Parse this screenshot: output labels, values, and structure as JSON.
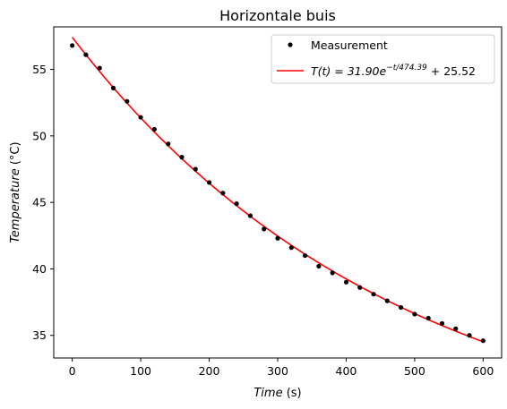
{
  "chart_data": {
    "type": "scatter",
    "title": "Horizontale buis",
    "xlabel": {
      "var": "Time",
      "unit": " (s)"
    },
    "ylabel": {
      "var": "Temperature",
      "unit": " (°C)"
    },
    "xlim": [
      -27,
      627
    ],
    "ylim": [
      33.3,
      58.2
    ],
    "xticks": [
      0,
      100,
      200,
      300,
      400,
      500,
      600
    ],
    "yticks": [
      35,
      40,
      45,
      50,
      55
    ],
    "grid": false,
    "legend_position": "top-right",
    "series": [
      {
        "name": "Measurement",
        "kind": "points",
        "color": "#000000",
        "x": [
          0,
          20,
          40,
          60,
          80,
          100,
          120,
          140,
          160,
          180,
          200,
          220,
          240,
          260,
          280,
          300,
          320,
          340,
          360,
          380,
          400,
          420,
          440,
          460,
          480,
          500,
          520,
          540,
          560,
          580,
          600
        ],
        "y": [
          56.8,
          56.1,
          55.1,
          53.6,
          52.6,
          51.4,
          50.5,
          49.4,
          48.4,
          47.5,
          46.5,
          45.7,
          44.9,
          44.0,
          43.0,
          42.3,
          41.6,
          41.0,
          40.2,
          39.7,
          39.0,
          38.6,
          38.1,
          37.6,
          37.1,
          36.6,
          36.3,
          35.9,
          35.5,
          35.0,
          34.6
        ]
      },
      {
        "name": "fit",
        "kind": "fit_curve",
        "color": "#ff0000",
        "A": 31.9,
        "tau": 474.39,
        "C": 25.52,
        "x_range": [
          0,
          600
        ]
      }
    ],
    "legend": [
      {
        "label": "Measurement",
        "marker": "dot",
        "color": "#000000"
      },
      {
        "label_parts": {
          "lhs": "T(t) = 31.90e",
          "exp": "−t/474.39",
          "rhs": " + 25.52"
        },
        "marker": "line",
        "color": "#ff0000"
      }
    ]
  }
}
